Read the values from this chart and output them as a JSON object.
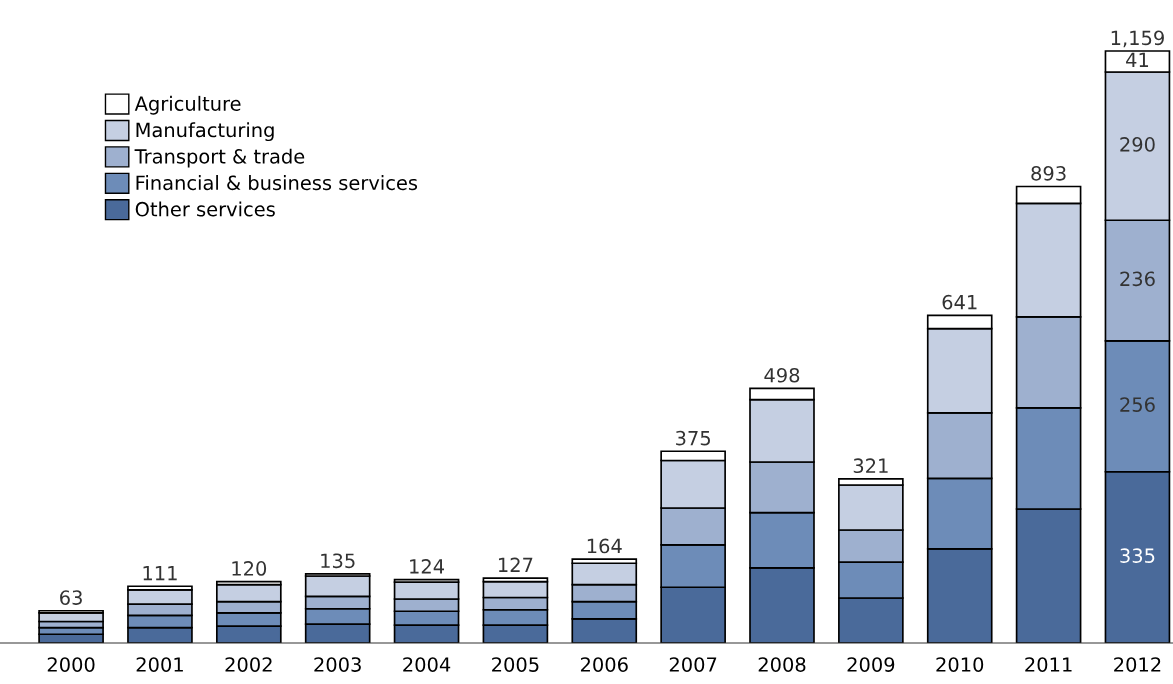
{
  "chart_data": {
    "type": "bar",
    "stacked": true,
    "legend": "top left",
    "categories": [
      "2000",
      "2001",
      "2002",
      "2003",
      "2004",
      "2005",
      "2006",
      "2007",
      "2008",
      "2009",
      "2010",
      "2011",
      "2012"
    ],
    "series": [
      {
        "name": "Other services",
        "color": "#4a6a9a",
        "values": [
          17,
          30,
          33,
          37,
          35,
          35,
          47,
          109,
          147,
          88,
          184,
          262,
          335
        ],
        "value_labels": [
          null,
          null,
          null,
          null,
          null,
          null,
          null,
          null,
          null,
          null,
          null,
          null,
          "335"
        ]
      },
      {
        "name": "Financial & business services",
        "color": "#6d8cb8",
        "values": [
          13,
          24,
          26,
          30,
          27,
          30,
          34,
          83,
          108,
          70,
          138,
          198,
          256
        ],
        "value_labels": [
          null,
          null,
          null,
          null,
          null,
          null,
          null,
          null,
          null,
          null,
          null,
          null,
          "256"
        ]
      },
      {
        "name": "Transport & trade",
        "color": "#9eb0cf",
        "values": [
          12,
          22,
          22,
          24,
          24,
          24,
          33,
          72,
          99,
          63,
          128,
          178,
          236
        ],
        "value_labels": [
          null,
          null,
          null,
          null,
          null,
          null,
          null,
          null,
          null,
          null,
          null,
          null,
          "236"
        ]
      },
      {
        "name": "Manufacturing",
        "color": "#c5cfe2",
        "values": [
          17,
          28,
          33,
          40,
          33,
          31,
          42,
          93,
          122,
          88,
          165,
          222,
          290
        ],
        "value_labels": [
          null,
          null,
          null,
          null,
          null,
          null,
          null,
          null,
          null,
          null,
          null,
          null,
          "290"
        ]
      },
      {
        "name": "Agriculture",
        "color": "#ffffff",
        "values": [
          4,
          7,
          6,
          4,
          5,
          7,
          8,
          18,
          22,
          12,
          26,
          33,
          41
        ],
        "value_labels": [
          null,
          null,
          null,
          null,
          null,
          null,
          null,
          null,
          null,
          null,
          null,
          null,
          "41"
        ]
      }
    ],
    "totals": [
      "63",
      "111",
      "120",
      "135",
      "124",
      "127",
      "164",
      "375",
      "498",
      "321",
      "641",
      "893",
      "1,159"
    ]
  }
}
